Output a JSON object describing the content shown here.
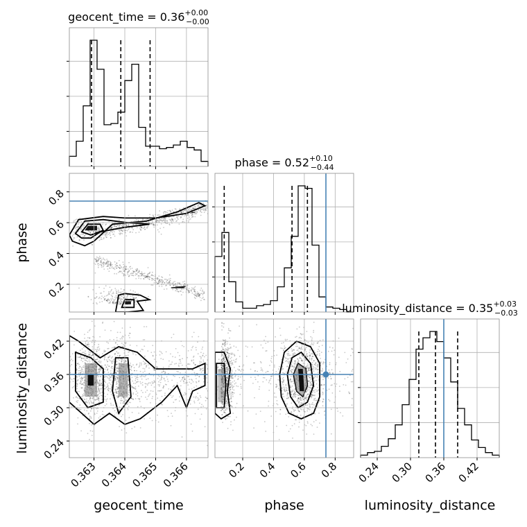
{
  "chart_data": {
    "type": "corner",
    "parameters": [
      "geocent_time",
      "phase",
      "luminosity_distance"
    ],
    "axis_labels": {
      "geocent_time": "geocent_time",
      "phase": "phase",
      "luminosity_distance": "luminosity_distance"
    },
    "titles": {
      "geocent_time": {
        "name": "geocent_time",
        "median": "0.36",
        "plus": "+0.00",
        "minus": "−0.00"
      },
      "phase": {
        "name": "phase",
        "median": "0.52",
        "plus": "+0.10",
        "minus": "−0.44"
      },
      "luminosity_distance": {
        "name": "luminosity_distance",
        "median": "0.35",
        "plus": "+0.03",
        "minus": "−0.03"
      }
    },
    "ranges": {
      "geocent_time": [
        0.3622,
        0.3667
      ],
      "phase": [
        0.02,
        0.92
      ],
      "luminosity_distance": [
        0.21,
        0.46
      ]
    },
    "ticks": {
      "geocent_time": [
        "0.363",
        "0.364",
        "0.365",
        "0.366"
      ],
      "phase": [
        "0.2",
        "0.4",
        "0.6",
        "0.8"
      ],
      "luminosity_distance": [
        "0.24",
        "0.30",
        "0.36",
        "0.42"
      ]
    },
    "tick_values": {
      "geocent_time": [
        0.363,
        0.364,
        0.365,
        0.366
      ],
      "phase": [
        0.2,
        0.4,
        0.6,
        0.8
      ],
      "luminosity_distance": [
        0.24,
        0.3,
        0.36,
        0.42
      ]
    },
    "truths": {
      "geocent_time": null,
      "phase": 0.74,
      "luminosity_distance": 0.36
    },
    "quantiles": {
      "geocent_time": [
        0.36292,
        0.36387,
        0.36482
      ],
      "phase": [
        0.08,
        0.52,
        0.62
      ],
      "luminosity_distance": [
        0.315,
        0.345,
        0.385
      ]
    },
    "histograms": {
      "geocent_time": [
        0.08,
        0.2,
        0.48,
        1.0,
        0.77,
        0.33,
        0.34,
        0.43,
        0.68,
        0.81,
        0.31,
        0.16,
        0.16,
        0.14,
        0.15,
        0.17,
        0.2,
        0.15,
        0.13,
        0.04
      ],
      "phase": [
        0.44,
        0.63,
        0.24,
        0.08,
        0.03,
        0.03,
        0.05,
        0.06,
        0.09,
        0.2,
        0.35,
        0.6,
        1.0,
        0.98,
        0.53,
        0.12,
        0.04,
        0.03,
        0.02,
        0.0
      ],
      "luminosity_distance": [
        0.02,
        0.04,
        0.05,
        0.09,
        0.15,
        0.26,
        0.42,
        0.62,
        0.86,
        0.95,
        1.0,
        0.92,
        0.79,
        0.6,
        0.39,
        0.26,
        0.14,
        0.08,
        0.04,
        0.02
      ]
    },
    "grid": true
  }
}
